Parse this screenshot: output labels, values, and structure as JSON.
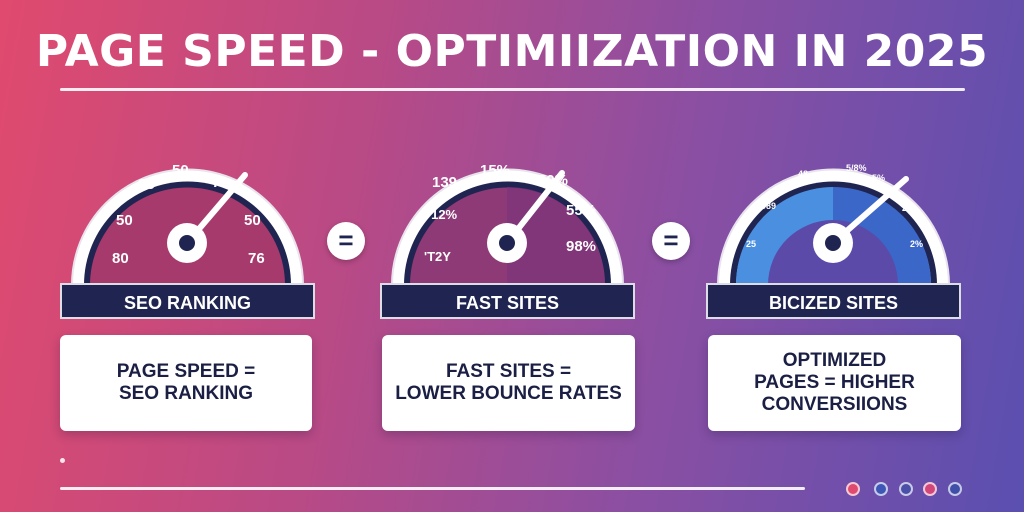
{
  "title": "PAGE SPEED - OPTIMIIZATION IN 2025",
  "equals_symbol": "=",
  "cards": [
    {
      "band_label": "SEO RANKING",
      "desc_lines": [
        "PAGE SPEED =",
        "SEO RANKING"
      ],
      "gauge_labels": [
        "80",
        "50",
        "35",
        "50",
        "71",
        "50",
        "76"
      ],
      "face_color": "#a63a6c",
      "needle_direction": "upper-right"
    },
    {
      "band_label": "FAST SITES",
      "desc_lines": [
        "FAST SITES =",
        "LOWER BOUNCE RATES"
      ],
      "gauge_labels": [
        "'T2Y",
        "'12%",
        "139",
        "15%",
        "50%",
        "55%",
        "98%"
      ],
      "face_color": "#8d3a76",
      "needle_direction": "upper-right"
    },
    {
      "band_label": "BICIZED SITES",
      "desc_lines": [
        "OPTIMIZED",
        "PAGES = HIGHER",
        "CONVERSIIONS"
      ],
      "gauge_labels": [
        "25",
        "1989",
        "48",
        "5/8%",
        "5%",
        "2%",
        "2%"
      ],
      "face_color": "#5b4aa8",
      "needle_direction": "upper-right"
    }
  ],
  "colors": {
    "navy": "#1f2550",
    "gauge_blue": "#4a8fe0",
    "gauge_light_blue": "#8ec0f0"
  },
  "social_icons": [
    "pinterest-icon",
    "twitter-icon",
    "facebook-icon",
    "instagram-icon",
    "linkedin-icon"
  ]
}
